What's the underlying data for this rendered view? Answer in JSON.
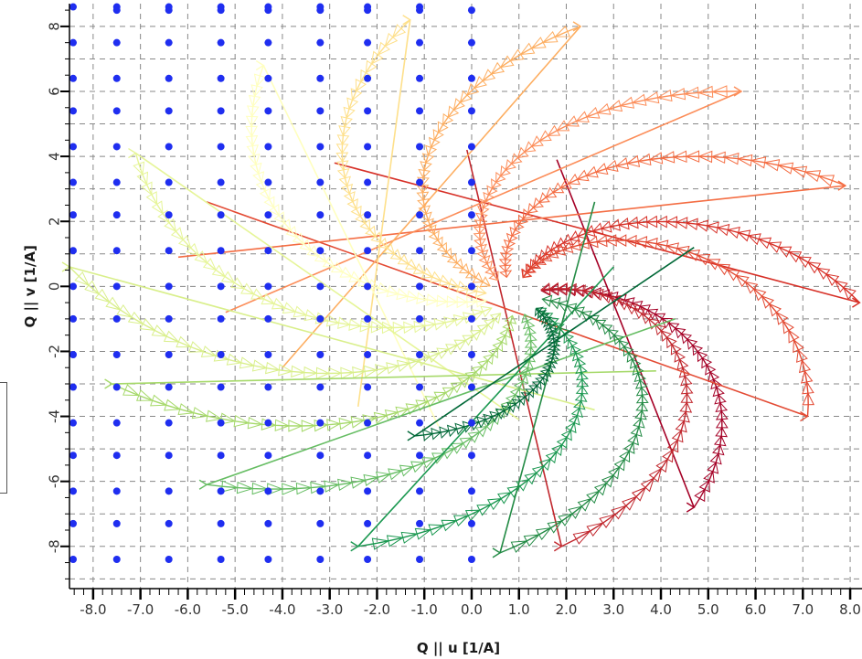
{
  "chart_data": {
    "type": "scatter",
    "xlabel": "Q || u  [1/A]",
    "ylabel": "Q || v  [1/A]",
    "xlim": [
      -8.5,
      8.25
    ],
    "ylim": [
      -9.3,
      8.7
    ],
    "x_ticks": [
      -8,
      -7,
      -6,
      -5,
      -4,
      -3,
      -2,
      -1,
      0,
      1,
      2,
      3,
      4,
      5,
      6,
      7,
      8
    ],
    "x_tick_labels": [
      "-8.0",
      "-7.0",
      "-6.0",
      "-5.0",
      "-4.0",
      "-3.0",
      "-2.0",
      "-1.0",
      "0.0",
      "1.0",
      "2.0",
      "3.0",
      "4.0",
      "5.0",
      "6.0",
      "7.0",
      "8.0"
    ],
    "y_ticks": [
      -8,
      -6,
      -4,
      -2,
      0,
      2,
      4,
      6,
      8
    ],
    "y_tick_labels": [
      "-8",
      "-6",
      "-4",
      "-2",
      "0",
      "2",
      "4",
      "6",
      "8"
    ],
    "grid": true,
    "colors": {
      "points": "#1f2ef0",
      "grid": "#888888",
      "axis": "#000000",
      "spiral_palette": [
        "#a50026",
        "#d73027",
        "#f46d43",
        "#fdae61",
        "#fee08b",
        "#ffffbf",
        "#d9ef8b",
        "#a6d96a",
        "#66bd63",
        "#1a9850",
        "#006837"
      ]
    },
    "reciprocal_lattice_points": {
      "columns_x": [
        -8.5,
        -7.5,
        -6.4,
        -5.3,
        -4.3,
        -3.2,
        -2.2,
        -1.1,
        0.0
      ],
      "rows_y": [
        8.6,
        8.5,
        7.5,
        6.4,
        5.4,
        4.3,
        3.2,
        2.2,
        1.1,
        0.0,
        -1.0,
        -2.1,
        -3.1,
        -4.2,
        -5.2,
        -6.3,
        -7.3,
        -8.4
      ],
      "top_row_y": 8.6
    },
    "series": [
      {
        "color": "#a50026",
        "end": [
          1.8,
          3.9
        ],
        "path_end": [
          4.7,
          -6.8
        ]
      },
      {
        "color": "#c1272d",
        "end": [
          -0.1,
          4.2
        ],
        "path_end": [
          1.9,
          -8.0
        ]
      },
      {
        "color": "#d73027",
        "end": [
          -2.9,
          3.8
        ],
        "path_end": [
          8.2,
          -0.5
        ]
      },
      {
        "color": "#e34a33",
        "end": [
          -5.6,
          2.6
        ],
        "path_end": [
          7.1,
          -4.0
        ]
      },
      {
        "color": "#f46d43",
        "end": [
          -6.2,
          0.9
        ],
        "path_end": [
          7.9,
          3.1
        ]
      },
      {
        "color": "#fc8d59",
        "end": [
          -5.2,
          -0.8
        ],
        "path_end": [
          5.7,
          6.0
        ]
      },
      {
        "color": "#fdae61",
        "end": [
          -4.0,
          -2.5
        ],
        "path_end": [
          2.3,
          8.0
        ]
      },
      {
        "color": "#fee08b",
        "end": [
          -2.4,
          -3.7
        ],
        "path_end": [
          -1.3,
          8.2
        ]
      },
      {
        "color": "#ffffbf",
        "end": [
          -0.7,
          -4.3
        ],
        "path_end": [
          -4.4,
          6.8
        ]
      },
      {
        "color": "#e6f598",
        "end": [
          1.0,
          -4.1
        ],
        "path_end": [
          -7.1,
          4.1
        ]
      },
      {
        "color": "#d9ef8b",
        "end": [
          2.6,
          -3.8
        ],
        "path_end": [
          -8.5,
          0.6
        ]
      },
      {
        "color": "#a6d96a",
        "end": [
          3.9,
          -2.6
        ],
        "path_end": [
          -7.6,
          -3.0
        ]
      },
      {
        "color": "#66bd63",
        "end": [
          4.3,
          -1.0
        ],
        "path_end": [
          -5.6,
          -6.1
        ]
      },
      {
        "color": "#1a9850",
        "end": [
          3.0,
          0.6
        ],
        "path_end": [
          -2.4,
          -8.0
        ]
      },
      {
        "color": "#238b45",
        "end": [
          2.6,
          2.6
        ],
        "path_end": [
          0.6,
          -8.2
        ]
      },
      {
        "color": "#006837",
        "end": [
          4.7,
          1.2
        ],
        "path_end": [
          -1.2,
          -4.6
        ]
      }
    ]
  }
}
